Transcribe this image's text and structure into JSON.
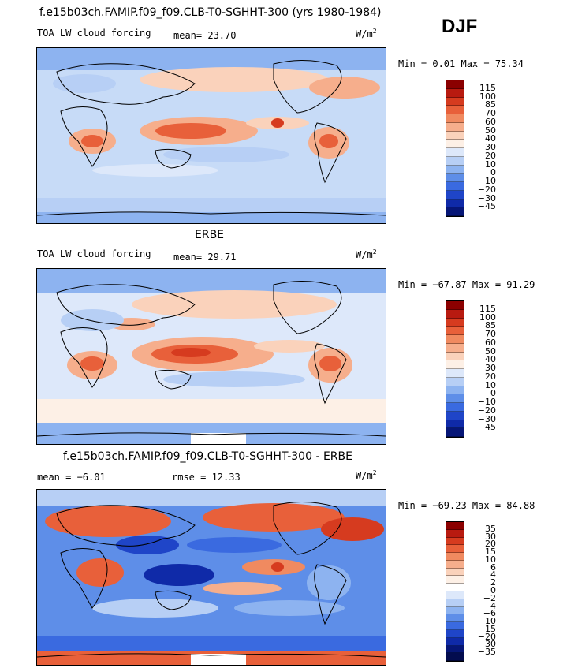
{
  "season": "DJF",
  "panels": [
    {
      "title": "f.e15b03ch.FAMIP.f09_f09.CLB-T0-SGHHT-300 (yrs 1980-1984)",
      "left_label": "TOA LW cloud forcing",
      "center_label": "mean=  23.70",
      "units": "W/m",
      "units_sup": "2",
      "minmax": "Min =   0.01 Max =  75.34",
      "colorbar": {
        "labels": [
          "115",
          "100",
          "85",
          "70",
          "60",
          "50",
          "40",
          "30",
          "20",
          "10",
          "0",
          "−10",
          "−20",
          "−30",
          "−45"
        ],
        "colors": [
          "#8b0000",
          "#b81a10",
          "#d63b1f",
          "#e8603a",
          "#f08a60",
          "#f6ae8c",
          "#fad2bb",
          "#fdf0e6",
          "#dde8fa",
          "#b7cff5",
          "#8db3f0",
          "#5e8ee8",
          "#3a6ae0",
          "#1f45c8",
          "#0f2aa8",
          "#061677"
        ]
      }
    },
    {
      "title": "ERBE",
      "left_label": "TOA LW cloud forcing",
      "center_label": "mean=  29.71",
      "units": "W/m",
      "units_sup": "2",
      "minmax": "Min = −67.87 Max =  91.29",
      "colorbar": {
        "labels": [
          "115",
          "100",
          "85",
          "70",
          "60",
          "50",
          "40",
          "30",
          "20",
          "10",
          "0",
          "−10",
          "−20",
          "−30",
          "−45"
        ],
        "colors": [
          "#8b0000",
          "#b81a10",
          "#d63b1f",
          "#e8603a",
          "#f08a60",
          "#f6ae8c",
          "#fad2bb",
          "#fdf0e6",
          "#dde8fa",
          "#b7cff5",
          "#8db3f0",
          "#5e8ee8",
          "#3a6ae0",
          "#1f45c8",
          "#0f2aa8",
          "#061677"
        ]
      }
    },
    {
      "title": "f.e15b03ch.FAMIP.f09_f09.CLB-T0-SGHHT-300 - ERBE",
      "left_label": "mean =  −6.01",
      "center_label": "rmse =  12.33",
      "units": "W/m",
      "units_sup": "2",
      "minmax": "Min = −69.23 Max =  84.88",
      "colorbar": {
        "labels": [
          "35",
          "30",
          "20",
          "15",
          "10",
          "6",
          "4",
          "2",
          "0",
          "−2",
          "−4",
          "−6",
          "−10",
          "−15",
          "−20",
          "−30",
          "−35"
        ],
        "colors": [
          "#8b0000",
          "#b81a10",
          "#d63b1f",
          "#e8603a",
          "#f08a60",
          "#f6ae8c",
          "#fad2bb",
          "#fdf0e6",
          "#ffffff",
          "#dde8fa",
          "#b7cff5",
          "#8db3f0",
          "#5e8ee8",
          "#3a6ae0",
          "#1f45c8",
          "#0f2aa8",
          "#061677",
          "#030c4f"
        ]
      }
    }
  ]
}
